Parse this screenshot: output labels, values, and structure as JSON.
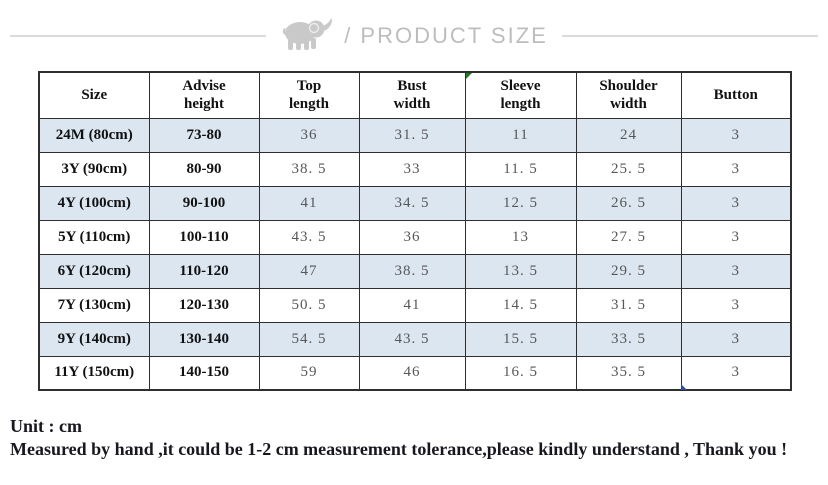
{
  "banner": {
    "icon": "elephant-icon",
    "title": "/ PRODUCT SIZE",
    "title_color": "#bdbdbd",
    "line_color": "#dadada"
  },
  "table": {
    "columns": [
      "Size",
      "Advise\nheight",
      "Top\nlength",
      "Bust\nwidth",
      "Sleeve\nlength",
      "Shoulder\nwidth",
      "Button"
    ],
    "rows": [
      [
        "24M (80cm)",
        "73-80",
        "36",
        "31. 5",
        "11",
        "24",
        "3"
      ],
      [
        "3Y (90cm)",
        "80-90",
        "38. 5",
        "33",
        "11. 5",
        "25. 5",
        "3"
      ],
      [
        "4Y (100cm)",
        "90-100",
        "41",
        "34. 5",
        "12. 5",
        "26. 5",
        "3"
      ],
      [
        "5Y (110cm)",
        "100-110",
        "43. 5",
        "36",
        "13",
        "27. 5",
        "3"
      ],
      [
        "6Y (120cm)",
        "110-120",
        "47",
        "38. 5",
        "13. 5",
        "29. 5",
        "3"
      ],
      [
        "7Y (130cm)",
        "120-130",
        "50. 5",
        "41",
        "14. 5",
        "31. 5",
        "3"
      ],
      [
        "9Y (140cm)",
        "130-140",
        "54. 5",
        "43. 5",
        "15. 5",
        "33. 5",
        "3"
      ],
      [
        "11Y (150cm)",
        "140-150",
        "59",
        "46",
        "16. 5",
        "35. 5",
        "3"
      ]
    ],
    "shaded_row_color": "#dce6f1",
    "border_color": "#2f2f2f",
    "number_color": "#575757",
    "green_marker_color": "#1e7b1e",
    "blue_marker_color": "#2f4f9e"
  },
  "footer": {
    "unit": "Unit : cm",
    "note": "Measured by hand ,it could be 1-2 cm measurement tolerance,please kindly understand , Thank you !"
  }
}
